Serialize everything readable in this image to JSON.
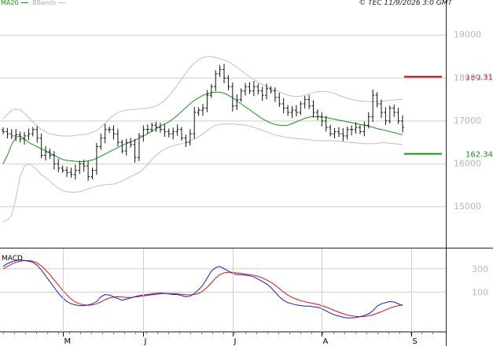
{
  "header": {
    "legend_ma": "MA20",
    "legend_bbands": "BBands",
    "copyright": "© TEC 11/9/2026 3:0 GMT"
  },
  "chart_data": [
    {
      "type": "line",
      "subtype": "ohlc",
      "title": "",
      "y_ticks": [
        150,
        160,
        170,
        180,
        190
      ],
      "y_tick_labels": [
        "15000",
        "16000",
        "17000",
        "18000",
        "19000"
      ],
      "ylim": [
        141,
        196
      ],
      "grid": true,
      "x_labels": [
        "M",
        "J",
        "J",
        "A",
        "S"
      ],
      "x_label_index": [
        14,
        33,
        54,
        75,
        96
      ],
      "levels": [
        {
          "name": "resistance",
          "value": 180.31,
          "label": "180.31",
          "color": "#cc0000"
        },
        {
          "name": "support",
          "value": 162.34,
          "label": "162.34",
          "color": "#119911"
        }
      ],
      "close": [
        167.5,
        167.0,
        166.5,
        166.8,
        165.8,
        166.5,
        167.0,
        168.0,
        166.0,
        162.0,
        162.8,
        162.0,
        160.0,
        159.0,
        158.5,
        158.0,
        157.5,
        158.5,
        160.0,
        159.5,
        157.0,
        158.5,
        164.0,
        166.0,
        168.0,
        168.0,
        167.0,
        165.0,
        163.0,
        165.0,
        164.5,
        161.5,
        166.5,
        168.0,
        168.0,
        169.0,
        168.5,
        168.0,
        167.5,
        167.0,
        167.5,
        168.0,
        166.0,
        165.0,
        167.0,
        172.0,
        172.5,
        173.0,
        176.0,
        178.0,
        181.0,
        182.0,
        180.0,
        178.0,
        173.5,
        175.0,
        177.0,
        178.0,
        177.0,
        178.0,
        177.0,
        176.0,
        177.5,
        177.0,
        175.5,
        174.0,
        173.0,
        172.0,
        172.5,
        172.0,
        174.0,
        175.0,
        173.5,
        172.0,
        171.0,
        170.0,
        168.5,
        167.0,
        167.5,
        167.0,
        166.5,
        168.0,
        168.0,
        168.5,
        167.5,
        169.0,
        171.0,
        176.0,
        174.0,
        172.0,
        170.0,
        173.0,
        172.0,
        170.0,
        168.5
      ],
      "ma20": [
        160.0,
        162.0,
        164.5,
        166.2,
        166.5,
        165.8,
        165.0,
        164.5,
        164.0,
        163.5,
        163.0,
        162.5,
        162.0,
        161.5,
        161.0,
        160.8,
        160.7,
        160.6,
        160.5,
        160.5,
        160.7,
        160.9,
        161.3,
        161.8,
        162.3,
        162.8,
        163.3,
        163.8,
        164.3,
        164.7,
        165.1,
        165.5,
        166.0,
        166.5,
        167.0,
        167.6,
        168.2,
        168.8,
        169.3,
        169.8,
        170.5,
        171.3,
        172.2,
        173.1,
        174.0,
        174.8,
        175.4,
        176.0,
        176.3,
        176.6,
        176.7,
        176.7,
        176.5,
        176.0,
        175.4,
        174.7,
        174.0,
        173.3,
        172.6,
        171.9,
        171.2,
        170.5,
        170.0,
        169.5,
        169.2,
        169.0,
        168.9,
        169.0,
        169.4,
        169.8,
        170.2,
        170.6,
        170.9,
        171.0,
        171.0,
        170.9,
        170.8,
        170.6,
        170.4,
        170.2,
        170.0,
        169.8,
        169.6,
        169.4,
        169.2,
        169.0,
        168.8,
        168.5,
        168.2,
        168.0,
        167.8,
        167.5,
        167.3,
        167.0,
        166.8
      ],
      "bb_upper": [
        170.5,
        171.5,
        172.5,
        172.8,
        172.6,
        171.8,
        170.8,
        169.8,
        168.8,
        168.0,
        167.5,
        167.0,
        166.8,
        166.6,
        166.5,
        166.5,
        166.5,
        166.6,
        166.8,
        166.8,
        167.0,
        167.3,
        167.8,
        168.5,
        169.5,
        170.5,
        171.3,
        172.0,
        172.3,
        172.5,
        172.6,
        172.7,
        172.8,
        172.9,
        173.0,
        173.2,
        173.5,
        174.0,
        174.8,
        175.8,
        177.0,
        178.3,
        179.8,
        181.2,
        182.5,
        183.5,
        184.3,
        184.8,
        185.0,
        185.0,
        184.8,
        184.5,
        184.2,
        183.8,
        183.2,
        182.5,
        181.8,
        181.0,
        180.3,
        179.6,
        179.0,
        178.5,
        178.0,
        177.6,
        177.2,
        176.8,
        176.4,
        176.0,
        175.8,
        175.7,
        175.8,
        176.0,
        176.3,
        176.6,
        176.8,
        176.9,
        176.9,
        176.7,
        176.4,
        176.0,
        175.6,
        175.3,
        175.0,
        174.8,
        174.7,
        174.6,
        174.5,
        174.5,
        174.5,
        174.6,
        174.7,
        174.8,
        174.9,
        175.0,
        175.0
      ],
      "bb_lower": [
        146.5,
        147.0,
        148.0,
        152.0,
        157.0,
        159.5,
        160.0,
        159.5,
        158.5,
        157.5,
        156.8,
        156.0,
        155.0,
        154.3,
        153.8,
        153.5,
        153.4,
        153.4,
        153.5,
        153.8,
        154.2,
        154.5,
        154.8,
        155.0,
        155.1,
        155.2,
        155.3,
        155.6,
        156.0,
        156.5,
        157.0,
        157.5,
        158.0,
        158.8,
        159.8,
        161.0,
        162.0,
        162.8,
        163.4,
        163.9,
        164.2,
        164.5,
        164.7,
        165.0,
        165.4,
        165.8,
        166.3,
        167.0,
        167.8,
        168.5,
        169.0,
        169.2,
        169.3,
        169.3,
        169.3,
        169.2,
        169.1,
        169.0,
        168.8,
        168.5,
        168.2,
        167.8,
        167.4,
        167.1,
        166.8,
        166.5,
        166.3,
        166.1,
        166.0,
        165.9,
        165.8,
        165.7,
        165.6,
        165.5,
        165.4,
        165.4,
        165.4,
        165.4,
        165.4,
        165.3,
        165.2,
        165.1,
        165.0,
        164.9,
        164.8,
        164.7,
        164.7,
        164.7,
        164.8,
        164.9,
        164.9,
        164.8,
        164.7,
        164.6,
        164.5
      ]
    },
    {
      "type": "line",
      "title": "MACD",
      "y_ticks": [
        100,
        300
      ],
      "y_tick_labels": [
        "100",
        "300"
      ],
      "ylim": [
        -240,
        460
      ],
      "series": [
        {
          "name": "",
          "color": "#1a1acc",
          "values": [
            320,
            345,
            360,
            370,
            375,
            370,
            365,
            355,
            330,
            290,
            240,
            190,
            140,
            90,
            50,
            20,
            0,
            -10,
            -15,
            -15,
            -10,
            0,
            20,
            60,
            80,
            75,
            60,
            45,
            30,
            40,
            50,
            60,
            70,
            75,
            80,
            85,
            90,
            92,
            90,
            85,
            80,
            80,
            70,
            60,
            65,
            90,
            120,
            160,
            220,
            280,
            310,
            320,
            300,
            280,
            260,
            250,
            250,
            245,
            240,
            230,
            210,
            190,
            170,
            140,
            100,
            60,
            30,
            10,
            0,
            -10,
            -15,
            -20,
            -20,
            -25,
            -30,
            -40,
            -60,
            -80,
            -95,
            -105,
            -115,
            -120,
            -120,
            -118,
            -110,
            -100,
            -85,
            -60,
            -20,
            0,
            10,
            20,
            15,
            0,
            -15
          ]
        },
        {
          "name": "",
          "color": "#dd1111",
          "values": [
            300,
            320,
            340,
            355,
            365,
            370,
            370,
            365,
            350,
            325,
            290,
            250,
            205,
            160,
            115,
            75,
            40,
            15,
            0,
            -10,
            -12,
            -10,
            0,
            15,
            35,
            50,
            58,
            60,
            58,
            55,
            55,
            58,
            62,
            67,
            72,
            77,
            82,
            86,
            88,
            88,
            87,
            85,
            82,
            78,
            76,
            80,
            90,
            110,
            140,
            180,
            220,
            250,
            265,
            270,
            270,
            265,
            260,
            255,
            250,
            243,
            235,
            222,
            205,
            185,
            160,
            130,
            100,
            75,
            55,
            40,
            28,
            18,
            10,
            2,
            -5,
            -15,
            -28,
            -42,
            -58,
            -72,
            -85,
            -95,
            -103,
            -108,
            -110,
            -108,
            -103,
            -95,
            -82,
            -68,
            -52,
            -37,
            -25,
            -15,
            -10
          ]
        }
      ]
    }
  ]
}
